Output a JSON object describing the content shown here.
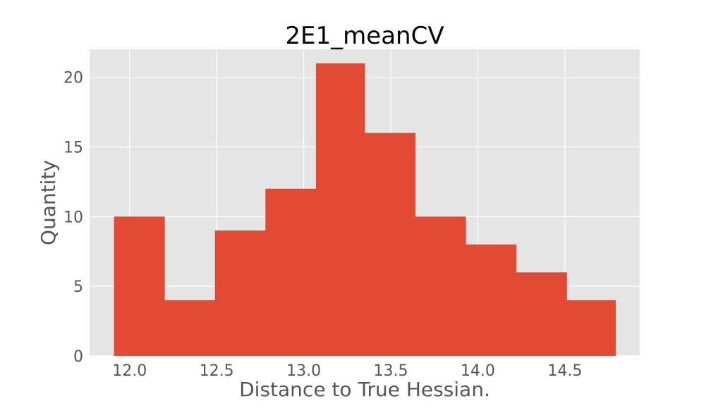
{
  "chart_data": {
    "type": "bar",
    "title": "2E1_meanCV",
    "xlabel": "Distance to True Hessian.",
    "ylabel": "Quantity",
    "bins": [
      {
        "x0": 11.91,
        "x1": 12.2,
        "value": 10
      },
      {
        "x0": 12.2,
        "x1": 12.49,
        "value": 4
      },
      {
        "x0": 12.49,
        "x1": 12.78,
        "value": 9
      },
      {
        "x0": 12.78,
        "x1": 13.07,
        "value": 12
      },
      {
        "x0": 13.07,
        "x1": 13.35,
        "value": 21
      },
      {
        "x0": 13.35,
        "x1": 13.64,
        "value": 16
      },
      {
        "x0": 13.64,
        "x1": 13.93,
        "value": 10
      },
      {
        "x0": 13.93,
        "x1": 14.22,
        "value": 8
      },
      {
        "x0": 14.22,
        "x1": 14.51,
        "value": 6
      },
      {
        "x0": 14.51,
        "x1": 14.79,
        "value": 4
      }
    ],
    "xlim": [
      11.77,
      14.93
    ],
    "ylim": [
      0,
      22
    ],
    "xticks": [
      12.0,
      12.5,
      13.0,
      13.5,
      14.0,
      14.5
    ],
    "xtick_labels": [
      "12.0",
      "12.5",
      "13.0",
      "13.5",
      "14.0",
      "14.5"
    ],
    "yticks": [
      0,
      5,
      10,
      15,
      20
    ],
    "ytick_labels": [
      "0",
      "5",
      "10",
      "15",
      "20"
    ],
    "grid": true,
    "colors": {
      "bar": "#E24A33",
      "plot_background": "#E5E5E5",
      "grid": "#FFFFFF",
      "tick_text": "#555555",
      "title_text": "#000000"
    }
  }
}
